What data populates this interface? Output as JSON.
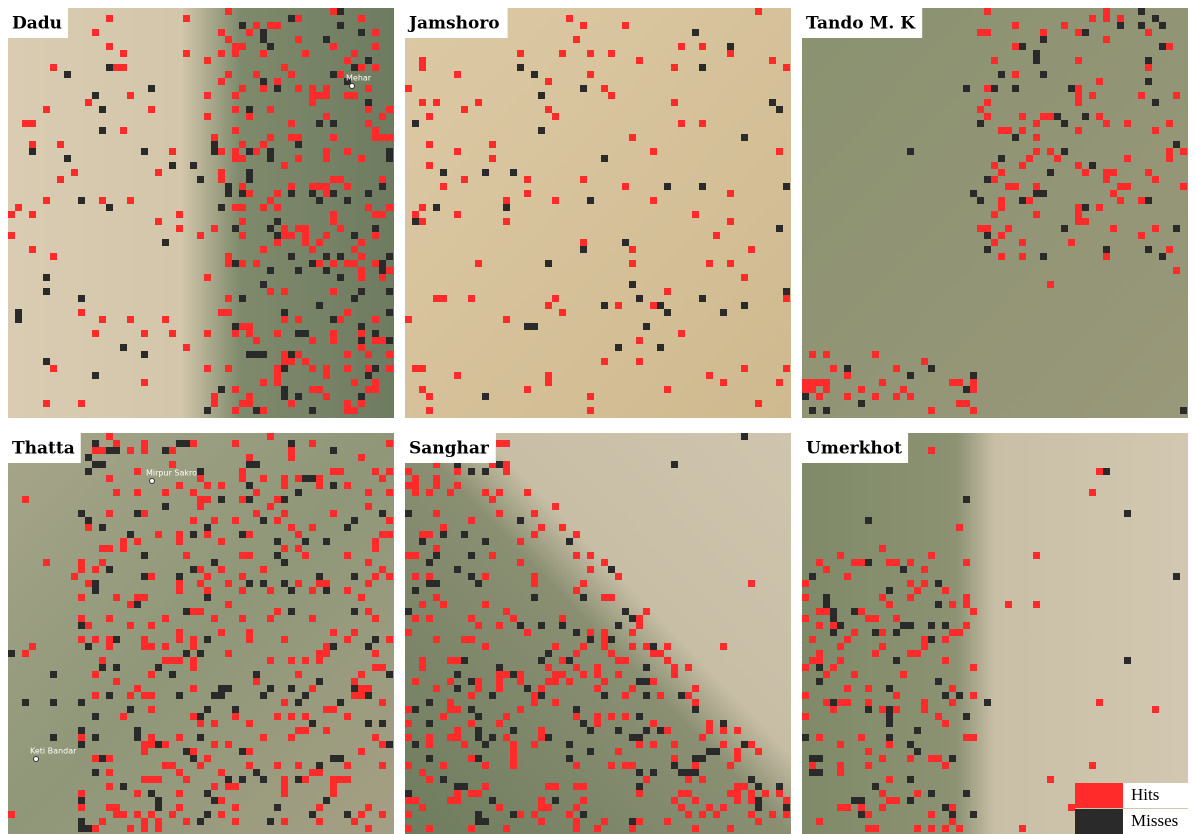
{
  "panels": [
    {
      "label": "Dadu",
      "places": [
        "Mehar"
      ]
    },
    {
      "label": "Jamshoro",
      "places": []
    },
    {
      "label": "Tando M. K",
      "places": []
    },
    {
      "label": "Thatta",
      "places": [
        "Mirpur Sakro",
        "Keti Bandar"
      ]
    },
    {
      "label": "Sanghar",
      "places": []
    },
    {
      "label": "Umerkhot",
      "places": []
    }
  ],
  "legend": {
    "items": [
      {
        "label": "Hits",
        "color": "#ff2a2a"
      },
      {
        "label": "Misses",
        "color": "#2a2a2a"
      }
    ]
  }
}
